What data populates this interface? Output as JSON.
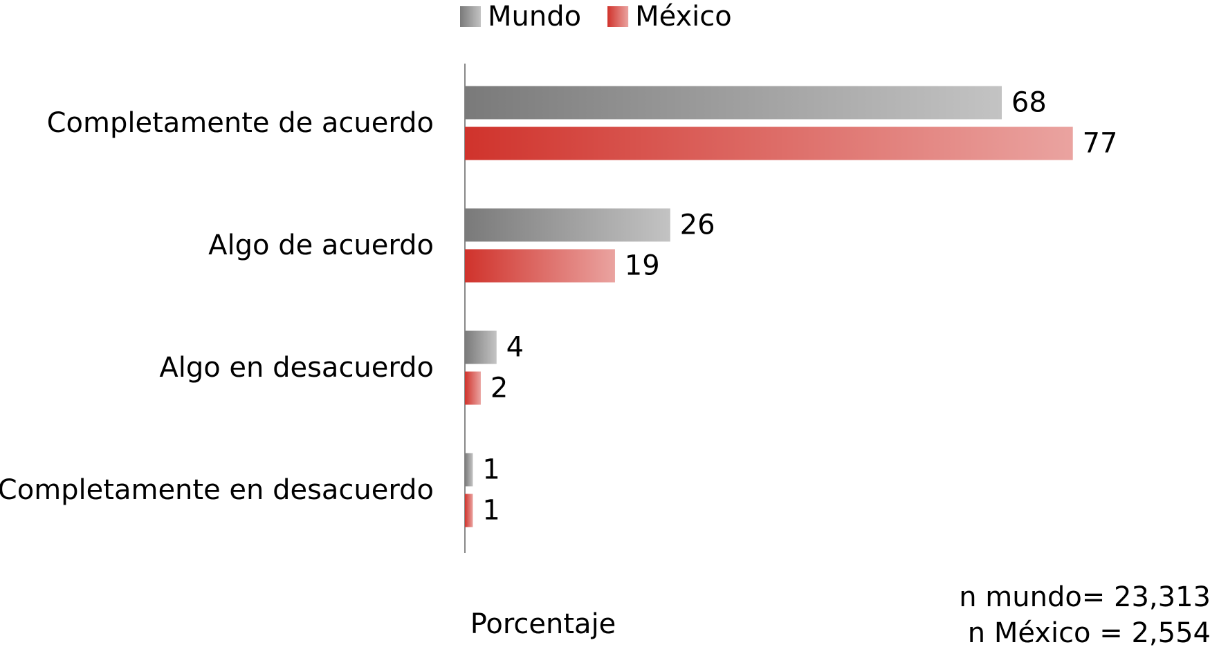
{
  "chart_data": {
    "type": "bar",
    "orientation": "horizontal",
    "categories": [
      "Completamente de acuerdo",
      "Algo de acuerdo",
      "Algo en desacuerdo",
      "Completamente en desacuerdo"
    ],
    "series": [
      {
        "name": "Mundo",
        "color": "#7a7a7a",
        "values": [
          68,
          26,
          4,
          1
        ]
      },
      {
        "name": "México",
        "color": "#d0332c",
        "values": [
          77,
          19,
          2,
          1
        ]
      }
    ],
    "xlim": [
      0,
      95
    ],
    "x_label": "Porcentaje",
    "annotations": [
      "n mundo= 23,313",
      "n México = 2,554"
    ],
    "legend": "top"
  }
}
